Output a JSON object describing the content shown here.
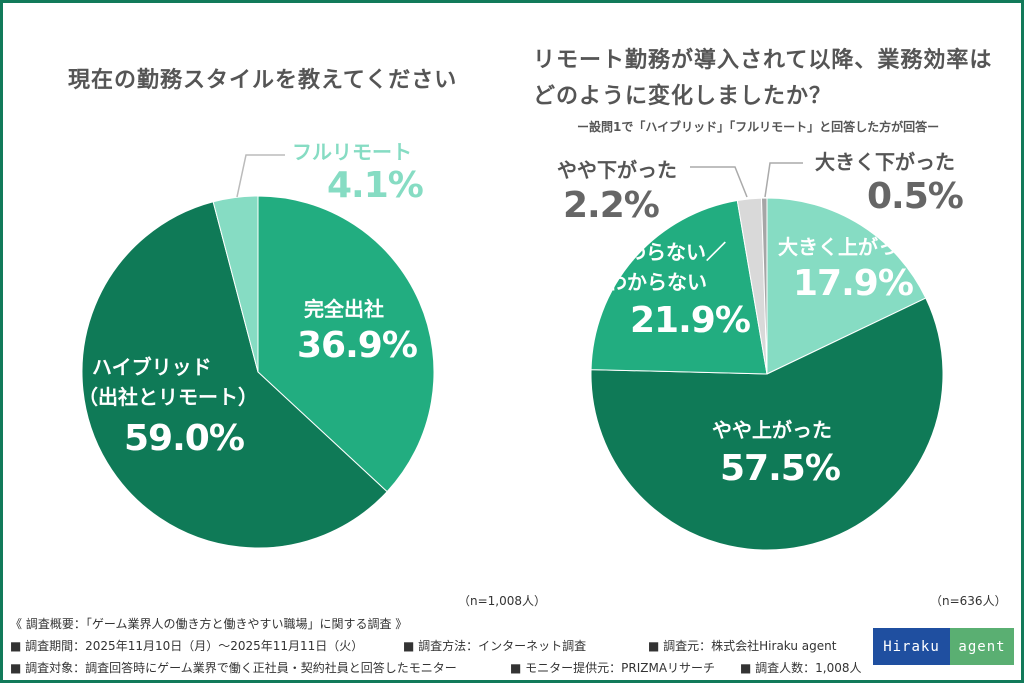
{
  "chart_data": [
    {
      "type": "pie",
      "title": "現在の勤務スタイルを教えてください",
      "note": "(n=1,008人)",
      "categories": [
        "完全出社",
        "ハイブリッド（出社とリモート）",
        "フルリモート"
      ],
      "values": [
        36.9,
        59.0,
        4.1
      ],
      "labels": [
        "36.9%",
        "59.0%",
        "4.1%"
      ],
      "colors": [
        "#22ad80",
        "#0f7a57",
        "#86dcc3"
      ],
      "start": "top",
      "direction": "clockwise"
    },
    {
      "type": "pie",
      "title": "リモート勤務が導入されて以降、業務効率はどのように変化しましたか？",
      "subtitle": "ー設問1で「ハイブリッド」「フルリモート」と回答した方が回答ー",
      "note": "(n=636人)",
      "categories": [
        "大きく上がった",
        "やや上がった",
        "変わらない／わからない",
        "やや下がった",
        "大きく下がった"
      ],
      "values": [
        17.9,
        57.5,
        21.9,
        2.2,
        0.5
      ],
      "labels": [
        "17.9%",
        "57.5%",
        "21.9%",
        "2.2%",
        "0.5%"
      ],
      "colors": [
        "#86dcc3",
        "#0f7a57",
        "#22ad80",
        "#d9d9d9",
        "#a6a6a6"
      ],
      "start": "top",
      "direction": "clockwise"
    }
  ],
  "left": {
    "title": "現在の勤務スタイルを教えてください",
    "n": "（n=1,008人）",
    "l_full": "完全出社",
    "l_hybrid1": "ハイブリッド",
    "l_hybrid2": "（出社とリモート）",
    "l_remote": "フルリモート"
  },
  "right": {
    "title1": "リモート勤務が導入されて以降、業務効率は",
    "title2": "どのように変化しましたか？",
    "subtitle": "ー設問1で「ハイブリッド」「フルリモート」と回答した方が回答ー",
    "n": "（n=636人）",
    "l_bigup": "大きく上がった",
    "l_up": "やや上がった",
    "l_same1": "変わらない／",
    "l_same2": "わからない",
    "l_down": "やや下がった",
    "l_bigdown": "大きく下がった"
  },
  "footer": {
    "line1": "《 調査概要：「ゲーム業界人の働き方と働きやすい職場」に関する調査 》",
    "period": "■ 調査期間：2025年11月10日（月）～2025年11月11日（火）",
    "method": "■ 調査方法：インターネット調査",
    "source": "■ 調査元：株式会社Hiraku agent",
    "target": "■ 調査対象：調査回答時にゲーム業界で働く正社員・契約社員と回答したモニター",
    "provider": "■ モニター提供元：PRIZMAリサーチ",
    "count": "■ 調査人数：1,008人"
  },
  "logo": {
    "part1": "Hiraku",
    "part2": "agent",
    "color1": "#1f4fa0",
    "color2": "#5aaf72"
  }
}
